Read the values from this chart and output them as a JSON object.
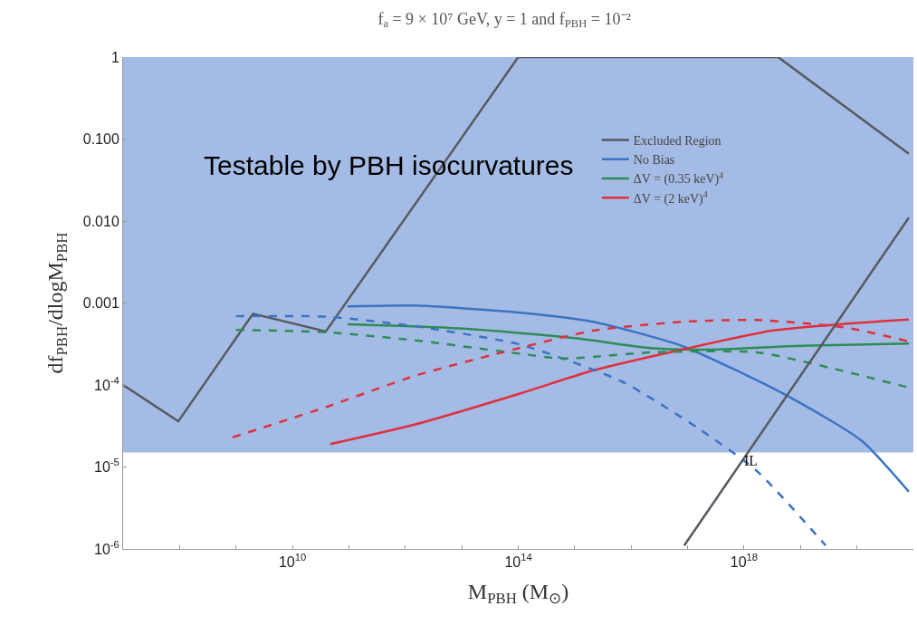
{
  "chart_data": {
    "type": "line",
    "title": "f$_{a}$ = 9 × 10⁷ GeV, y = 1 and f$_{PBH}$ = 10⁻²",
    "xlabel": "M$_{PBH}$ (M$_{⊙}$)",
    "ylabel": "df$_{PBH}$/dlogM$_{PBH}$",
    "log": "xy",
    "xlim": [
      10000000.0,
      1e+21
    ],
    "ylim": [
      1e-06,
      1
    ],
    "xticks": [
      {
        "value": 10000000.0,
        "label": null
      },
      {
        "value": 100000000.0,
        "label": null
      },
      {
        "value": 1000000000.0,
        "label": null
      },
      {
        "value": 10000000000.0,
        "label": "10$^{10}$"
      },
      {
        "value": 100000000000.0,
        "label": null
      },
      {
        "value": 1000000000000.0,
        "label": null
      },
      {
        "value": 10000000000000.0,
        "label": null
      },
      {
        "value": 100000000000000.0,
        "label": "10$^{14}$"
      },
      {
        "value": 1000000000000000.0,
        "label": null
      },
      {
        "value": 1e+16,
        "label": null
      },
      {
        "value": 1e+17,
        "label": null
      },
      {
        "value": 1e+18,
        "label": "10$^{18}$"
      },
      {
        "value": 1e+19,
        "label": null
      },
      {
        "value": 1e+20,
        "label": null
      }
    ],
    "yticks": [
      {
        "value": 1e-06,
        "label": "10$^{-6}$"
      },
      {
        "value": 1e-05,
        "label": "10$^{-5}$"
      },
      {
        "value": 0.0001,
        "label": "10$^{-4}$"
      },
      {
        "value": 0.001,
        "label": "0.001"
      },
      {
        "value": 0.01,
        "label": "0.010"
      },
      {
        "value": 0.1,
        "label": "0.100"
      },
      1
    ],
    "grid": false,
    "legend": "top",
    "bands": [
      {
        "axis": "y",
        "from": 1.5e-05,
        "to": 1,
        "label": "Testable by PBH isocurvatures",
        "color": "#9ab5e2"
      }
    ],
    "annotations": [
      "IL"
    ],
    "series": [
      {
        "name": "Excluded Region",
        "color": "#555a60",
        "x": [
          10000000.0,
          95000000.0,
          2000000000.0,
          39000000000.0,
          100000000000000.0,
          4e+18,
          8.3e+20
        ],
        "values": [
          0.0001,
          3.6e-05,
          0.00074,
          0.00045,
          1,
          1,
          0.066
        ]
      },
      {
        "name": "No Bias",
        "color": "#3b73c4",
        "line_style": "solid",
        "x": [
          95000000000.0,
          1500000000000.0,
          110000000000000.0,
          2100000000000000.0,
          7.9e+16,
          5.8e+18,
          1.2e+20,
          8.3e+20
        ],
        "values": [
          0.00091,
          0.00093,
          0.00076,
          0.00059,
          0.0003,
          7.4e-05,
          2.1e-05,
          5e-06
        ]
      },
      {
        "name": "ΔV = (0.35 keV)$^{4}$",
        "color": "#2e8b57",
        "line_style": "solid",
        "x": [
          95000000000.0,
          5400000000000.0,
          110000000000000.0,
          1100000000000000.0,
          2.4e+16,
          2.7e+17,
          1e+19,
          8.3e+20
        ],
        "values": [
          0.00055,
          0.0005,
          0.00043,
          0.00037,
          0.00028,
          0.00027,
          0.0003,
          0.00032
        ]
      },
      {
        "name": "ΔV = (2 keV)$^{4}$",
        "color": "#e0303c",
        "line_style": "solid",
        "x": [
          47000000000.0,
          1500000000000.0,
          110000000000000.0,
          2100000000000000.0,
          7.9e+16,
          3.1e+18,
          6.5e+19,
          8.3e+20
        ],
        "values": [
          1.9e-05,
          3.3e-05,
          7.9e-05,
          0.00015,
          0.00027,
          0.00046,
          0.00056,
          0.00063
        ]
      },
      {
        "color": "#3b73c4",
        "line_style": "dashed",
        "x": [
          1000000000.0,
          40000000000.0,
          1500000000000.0,
          110000000000000.0,
          6900000000000000.0,
          1.5e+17,
          1.7e+18,
          2.8e+19
        ],
        "values": [
          0.00069,
          0.00068,
          0.00052,
          0.00031,
          0.00011,
          3e-05,
          8.9e-06,
          1.1e-06
        ]
      },
      {
        "color": "#2e8b57",
        "line_style": "dashed",
        "x": [
          1000000000.0,
          40000000000.0,
          1500000000000.0,
          110000000000000.0,
          620000000000000.0,
          2.4e+16,
          1.7e+18,
          3.6e+19,
          8.3e+20
        ],
        "values": [
          0.00047,
          0.00044,
          0.00035,
          0.00024,
          0.00021,
          0.00025,
          0.00025,
          0.00016,
          9.3e-05
        ]
      },
      {
        "color": "#e0303c",
        "line_style": "dashed",
        "x": [
          870000000.0,
          40000000000.0,
          1500000000000.0,
          100000000000000.0,
          2100000000000000.0,
          7.9e+16,
          1.7e+18,
          6.5e+19,
          8.3e+20
        ],
        "values": [
          2.3e-05,
          5.4e-05,
          0.00013,
          0.00028,
          0.00046,
          0.00059,
          0.00062,
          0.0005,
          0.00034
        ]
      },
      {
        "color": "#555a60",
        "line_style": "solid",
        "x": [
          8.7e+16,
          8.3e+20
        ],
        "values": [
          1.1e-06,
          0.011
        ]
      }
    ]
  }
}
